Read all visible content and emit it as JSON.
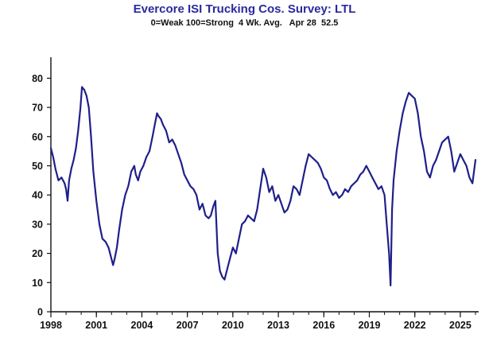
{
  "chart_data": {
    "type": "line",
    "title": "Evercore ISI  Trucking Cos. Survey:  LTL",
    "subtitle": "0=Weak 100=Strong  4 Wk. Avg.   Apr 28  52.5",
    "xlabel": "",
    "ylabel": "",
    "xlim": [
      1998.0,
      2026.0
    ],
    "ylim": [
      0,
      85
    ],
    "x_ticks": [
      1998,
      2001,
      2004,
      2007,
      2010,
      2013,
      2016,
      2019,
      2022,
      2025
    ],
    "x_tick_labels": [
      "1998",
      "2001",
      "2004",
      "2007",
      "2010",
      "2013",
      "2016",
      "2019",
      "2022",
      "2025"
    ],
    "y_ticks": [
      0,
      10,
      20,
      30,
      40,
      50,
      60,
      70,
      80
    ],
    "y_tick_labels": [
      "0",
      "10",
      "20",
      "30",
      "40",
      "50",
      "60",
      "70",
      "80"
    ],
    "grid": false,
    "legend": "none",
    "line_color": "#1f1f8a",
    "series": [
      {
        "x": [
          1998.0,
          1998.15,
          1998.3,
          1998.5,
          1998.7,
          1998.9,
          1999.0,
          1999.1,
          1999.2,
          1999.35,
          1999.5,
          1999.65,
          1999.8,
          1999.95,
          2000.05,
          2000.2,
          2000.35,
          2000.5,
          2000.65,
          2000.8,
          2001.0,
          2001.2,
          2001.4,
          2001.6,
          2001.8,
          2002.0,
          2002.1,
          2002.2,
          2002.35,
          2002.5,
          2002.7,
          2002.9,
          2003.1,
          2003.3,
          2003.5,
          2003.6,
          2003.75,
          2003.9,
          2004.1,
          2004.3,
          2004.5,
          2004.7,
          2004.85,
          2005.0,
          2005.1,
          2005.25,
          2005.4,
          2005.6,
          2005.8,
          2006.0,
          2006.2,
          2006.4,
          2006.6,
          2006.8,
          2007.0,
          2007.2,
          2007.4,
          2007.6,
          2007.8,
          2008.0,
          2008.2,
          2008.4,
          2008.55,
          2008.7,
          2008.85,
          2009.0,
          2009.15,
          2009.3,
          2009.45,
          2009.6,
          2009.8,
          2010.0,
          2010.2,
          2010.4,
          2010.6,
          2010.8,
          2011.0,
          2011.2,
          2011.4,
          2011.6,
          2011.8,
          2012.0,
          2012.2,
          2012.4,
          2012.6,
          2012.8,
          2013.0,
          2013.2,
          2013.4,
          2013.6,
          2013.8,
          2014.0,
          2014.2,
          2014.4,
          2014.6,
          2014.8,
          2015.0,
          2015.2,
          2015.4,
          2015.6,
          2015.8,
          2016.0,
          2016.2,
          2016.4,
          2016.6,
          2016.8,
          2017.0,
          2017.2,
          2017.4,
          2017.6,
          2017.8,
          2018.0,
          2018.2,
          2018.4,
          2018.6,
          2018.8,
          2019.0,
          2019.2,
          2019.4,
          2019.6,
          2019.8,
          2020.0,
          2020.15,
          2020.3,
          2020.4,
          2020.5,
          2020.6,
          2020.8,
          2021.0,
          2021.2,
          2021.4,
          2021.6,
          2021.8,
          2022.0,
          2022.2,
          2022.4,
          2022.6,
          2022.8,
          2023.0,
          2023.2,
          2023.4,
          2023.6,
          2023.8,
          2024.0,
          2024.2,
          2024.4,
          2024.6,
          2024.8,
          2025.0,
          2025.2,
          2025.4,
          2025.6,
          2025.8,
          2025.9,
          2026.0
        ],
        "values": [
          56,
          53,
          49,
          45,
          46,
          44,
          42,
          38,
          45,
          49,
          52,
          56,
          62,
          70,
          77,
          76,
          74,
          70,
          60,
          48,
          38,
          30,
          25,
          24,
          22,
          18,
          16,
          18,
          22,
          28,
          35,
          40,
          43,
          48,
          50,
          47,
          45,
          48,
          50,
          53,
          55,
          60,
          64,
          68,
          67,
          66,
          64,
          62,
          58,
          59,
          57,
          54,
          51,
          47,
          45,
          43,
          42,
          40,
          35,
          37,
          33,
          32,
          33,
          36,
          38,
          20,
          14,
          12,
          11,
          14,
          18,
          22,
          20,
          25,
          30,
          31,
          33,
          32,
          31,
          35,
          42,
          49,
          46,
          41,
          43,
          38,
          40,
          37,
          34,
          35,
          38,
          43,
          42,
          40,
          45,
          50,
          54,
          53,
          52,
          51,
          49,
          46,
          45,
          42,
          40,
          41,
          39,
          40,
          42,
          41,
          43,
          44,
          45,
          47,
          48,
          50,
          48,
          46,
          44,
          42,
          43,
          40,
          30,
          20,
          9,
          35,
          45,
          55,
          62,
          68,
          72,
          75,
          74,
          73,
          68,
          60,
          55,
          48,
          46,
          50,
          52,
          55,
          58,
          59,
          60,
          55,
          48,
          51,
          54,
          52,
          50,
          46,
          44,
          48,
          52
        ]
      }
    ]
  }
}
